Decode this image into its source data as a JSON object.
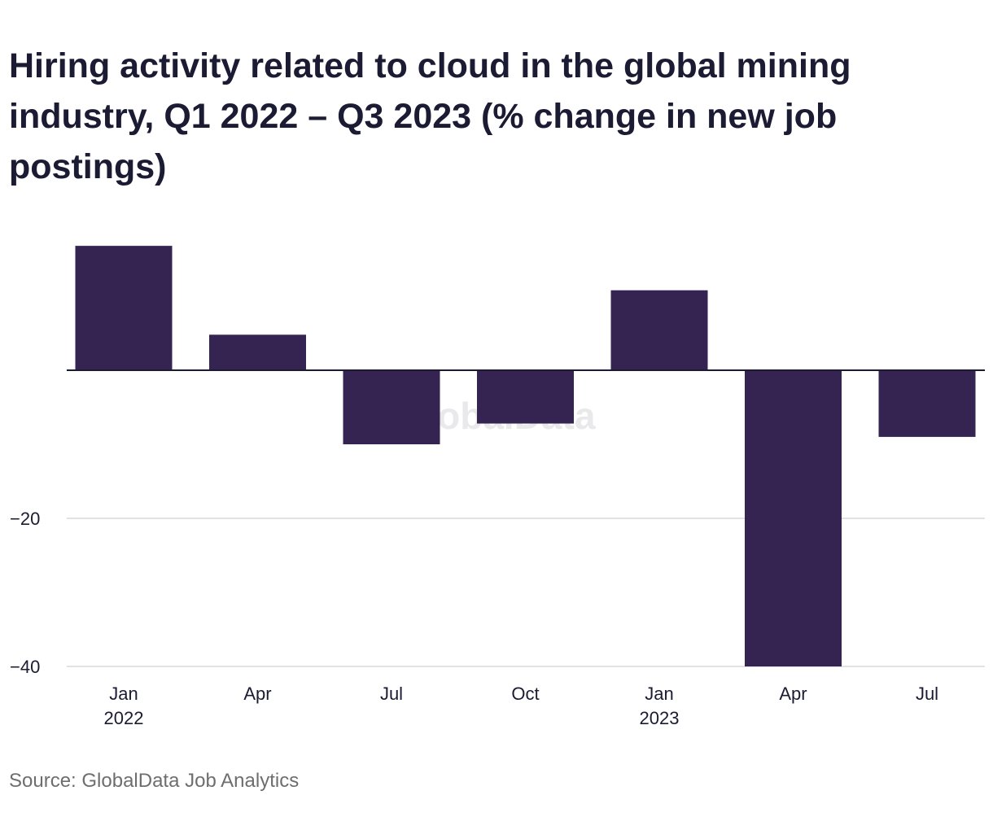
{
  "chart_data": {
    "type": "bar",
    "title": "Hiring activity related to cloud in the global mining industry, Q1 2022 – Q3 2023 (% change in new job postings)",
    "categories": [
      "Q1 2022",
      "Q2 2022",
      "Q3 2022",
      "Q4 2022",
      "Q1 2023",
      "Q2 2023",
      "Q3 2023"
    ],
    "tick_labels": [
      {
        "line1": "Jan",
        "line2": "2022"
      },
      {
        "line1": "Apr",
        "line2": ""
      },
      {
        "line1": "Jul",
        "line2": ""
      },
      {
        "line1": "Oct",
        "line2": ""
      },
      {
        "line1": "Jan",
        "line2": "2023"
      },
      {
        "line1": "Apr",
        "line2": ""
      },
      {
        "line1": "Jul",
        "line2": ""
      }
    ],
    "values": [
      16.8,
      4.8,
      -10.0,
      -7.2,
      10.8,
      -40.0,
      -9.0
    ],
    "ylim": [
      -40,
      17.5
    ],
    "yticks": [
      -20,
      -40
    ],
    "ytick_labels": [
      "−20",
      "−40"
    ],
    "xlabel": "",
    "ylabel": "",
    "grid": true,
    "bar_color": "#352452",
    "watermark": "GlobalData"
  },
  "source": "Source: GlobalData Job Analytics"
}
